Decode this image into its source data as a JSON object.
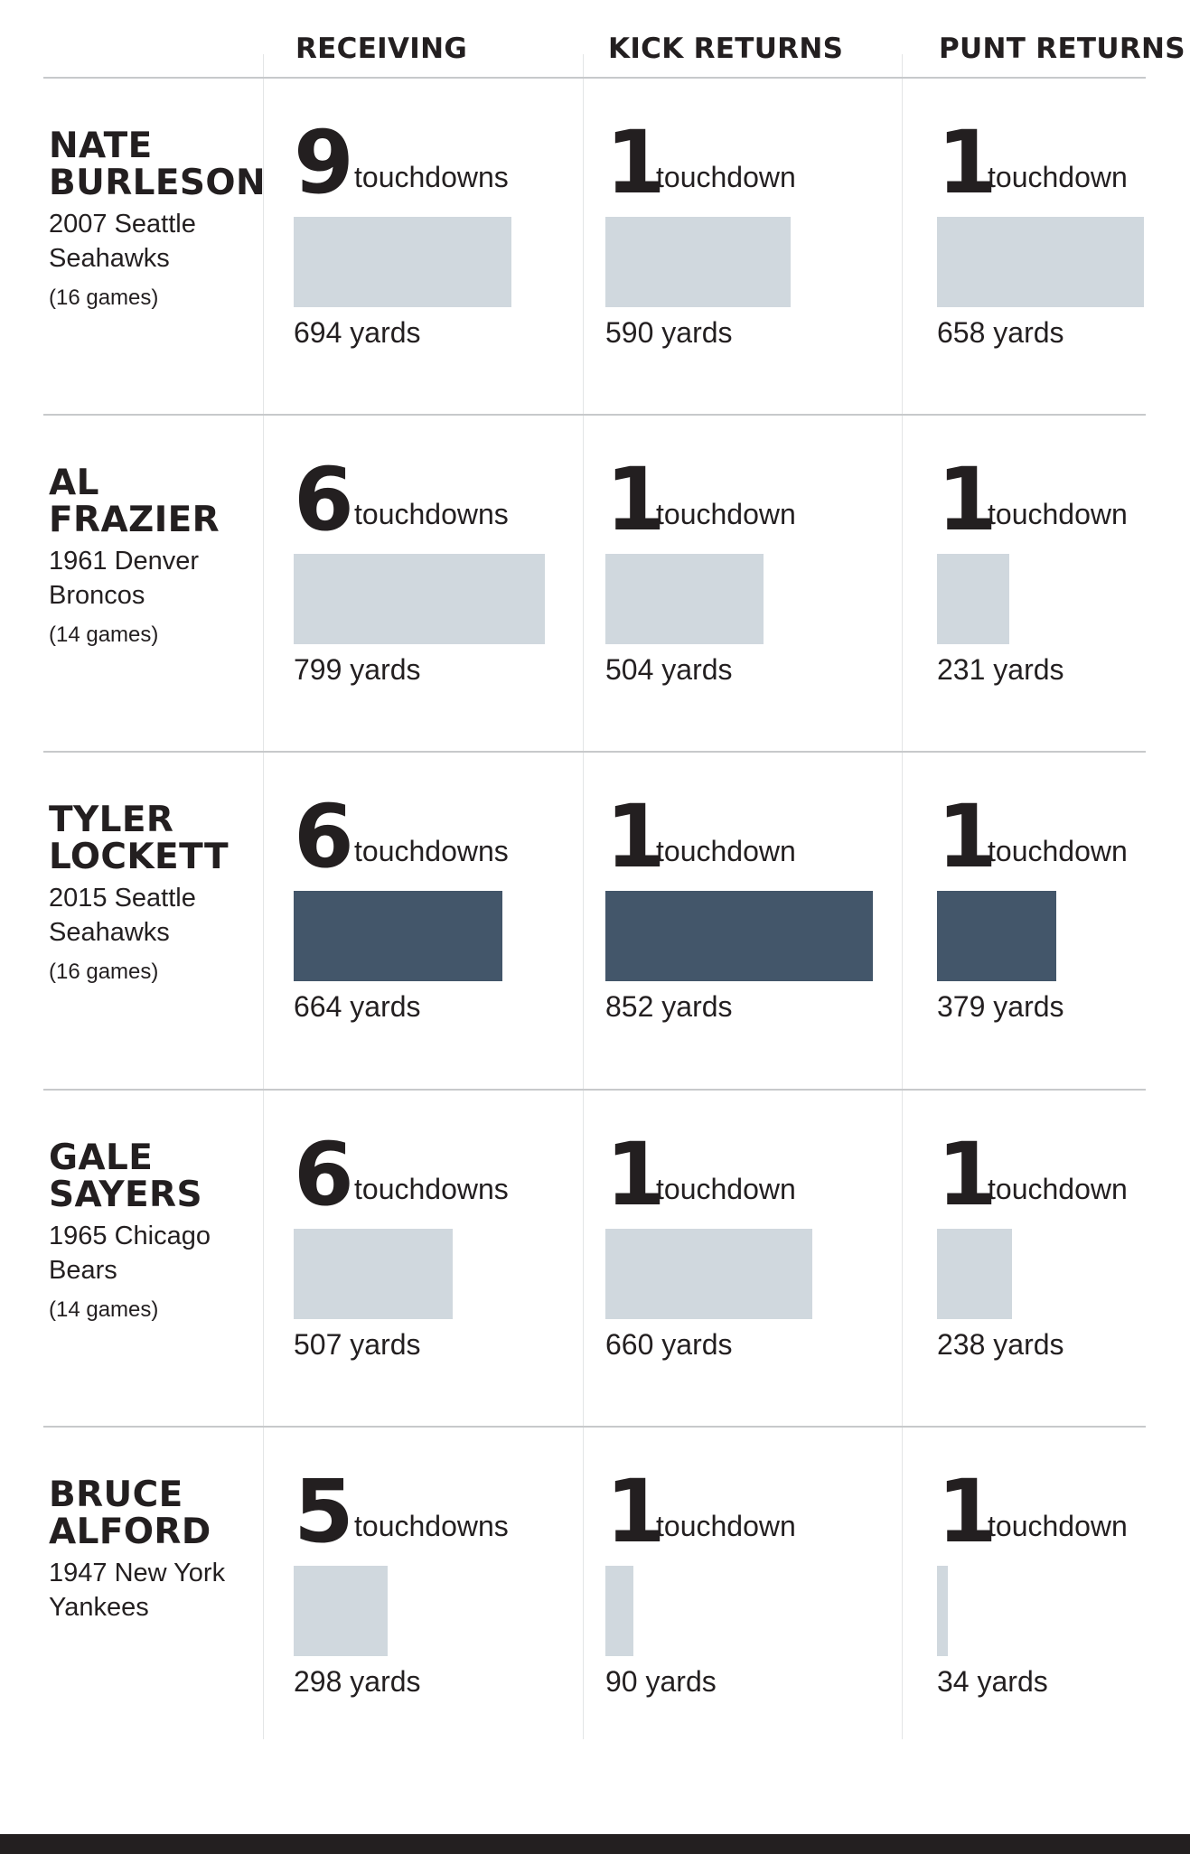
{
  "chart_data": {
    "type": "bar",
    "columns": [
      "RECEIVING",
      "KICK RETURNS",
      "PUNT RETURNS"
    ],
    "scale_max_yards": 852,
    "players": [
      {
        "name_line1": "NATE",
        "name_line2": "BURLESON",
        "team_line1": "2007 Seattle",
        "team_line2": "Seahawks",
        "games": "(16 games)",
        "highlight": false,
        "stats": [
          {
            "td_number": "9",
            "td_label": "touchdowns",
            "yards": 694,
            "yards_label": "694 yards"
          },
          {
            "td_number": "1",
            "td_label": "touchdown",
            "yards": 590,
            "yards_label": "590 yards"
          },
          {
            "td_number": "1",
            "td_label": "touchdown",
            "yards": 658,
            "yards_label": "658 yards"
          }
        ]
      },
      {
        "name_line1": "AL",
        "name_line2": "FRAZIER",
        "team_line1": "1961  Denver",
        "team_line2": "Broncos",
        "games": "(14 games)",
        "highlight": false,
        "stats": [
          {
            "td_number": "6",
            "td_label": "touchdowns",
            "yards": 799,
            "yards_label": "799 yards"
          },
          {
            "td_number": "1",
            "td_label": "touchdown",
            "yards": 504,
            "yards_label": "504 yards"
          },
          {
            "td_number": "1",
            "td_label": "touchdown",
            "yards": 231,
            "yards_label": "231 yards"
          }
        ]
      },
      {
        "name_line1": "TYLER",
        "name_line2": "LOCKETT",
        "team_line1": "2015 Seattle",
        "team_line2": "Seahawks",
        "games": "(16 games)",
        "highlight": true,
        "stats": [
          {
            "td_number": "6",
            "td_label": "touchdowns",
            "yards": 664,
            "yards_label": "664 yards"
          },
          {
            "td_number": "1",
            "td_label": "touchdown",
            "yards": 852,
            "yards_label": "852 yards"
          },
          {
            "td_number": "1",
            "td_label": "touchdown",
            "yards": 379,
            "yards_label": "379 yards"
          }
        ]
      },
      {
        "name_line1": "GALE",
        "name_line2": "SAYERS",
        "team_line1": "1965 Chicago",
        "team_line2": "Bears",
        "games": "(14 games)",
        "highlight": false,
        "stats": [
          {
            "td_number": "6",
            "td_label": "touchdowns",
            "yards": 507,
            "yards_label": "507 yards"
          },
          {
            "td_number": "1",
            "td_label": "touchdown",
            "yards": 660,
            "yards_label": "660 yards"
          },
          {
            "td_number": "1",
            "td_label": "touchdown",
            "yards": 238,
            "yards_label": "238 yards"
          }
        ]
      },
      {
        "name_line1": "BRUCE",
        "name_line2": "ALFORD",
        "team_line1": "1947 New York",
        "team_line2": "Yankees",
        "games": "",
        "highlight": false,
        "stats": [
          {
            "td_number": "5",
            "td_label": "touchdowns",
            "yards": 298,
            "yards_label": "298 yards"
          },
          {
            "td_number": "1",
            "td_label": "touchdown",
            "yards": 90,
            "yards_label": "90 yards"
          },
          {
            "td_number": "1",
            "td_label": "touchdown",
            "yards": 34,
            "yards_label": "34 yards"
          }
        ]
      }
    ],
    "colors": {
      "bar": "#d0d8de",
      "highlight_bar": "#43566a",
      "text": "#231f20",
      "rule": "#c7c9cb",
      "footer": "#231f20"
    }
  }
}
